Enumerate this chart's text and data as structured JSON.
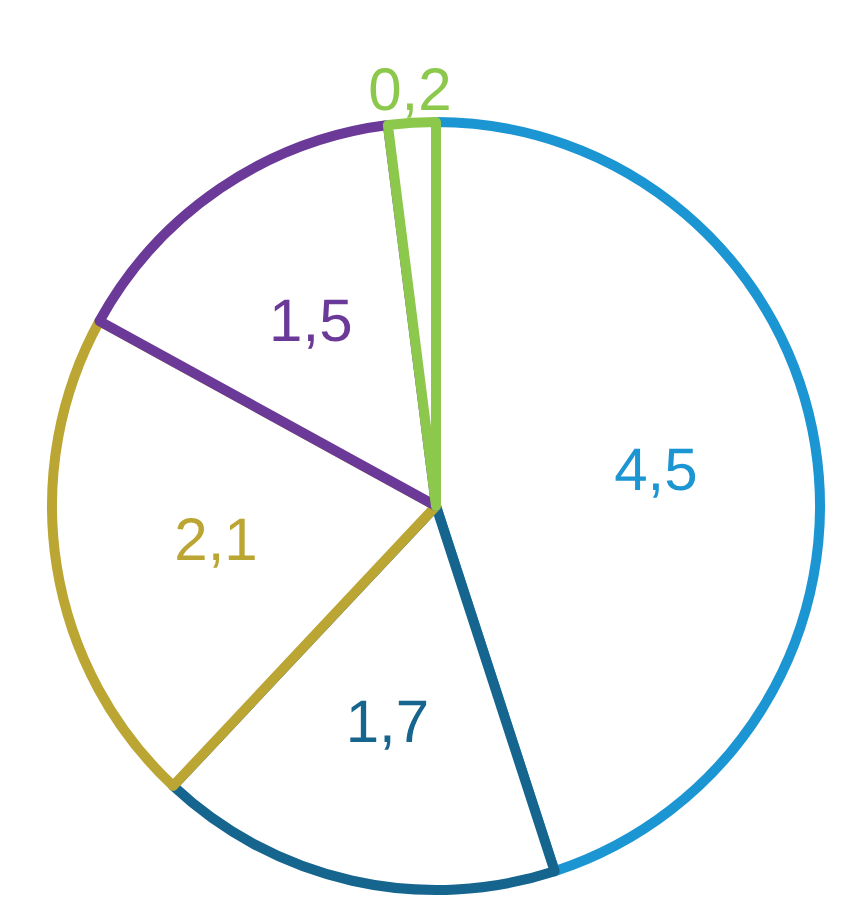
{
  "chart_data": {
    "type": "pie",
    "categories": [
      null,
      null,
      null,
      null,
      null
    ],
    "values": [
      4.5,
      1.7,
      2.1,
      1.5,
      0.2
    ],
    "colors": [
      "#1c95d3",
      "#16658f",
      "#bba533",
      "#6b3997",
      "#8cc84b"
    ],
    "value_labels": [
      "4,5",
      "1,7",
      "2,1",
      "1,5",
      "0,2"
    ]
  }
}
